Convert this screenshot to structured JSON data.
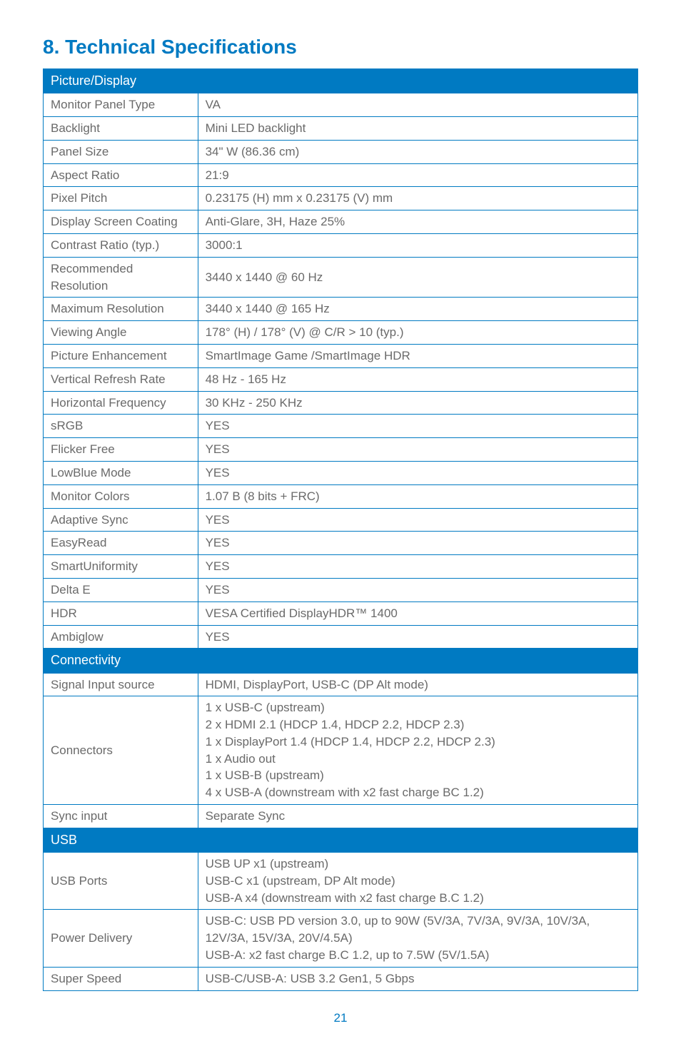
{
  "title": "8.  Technical Specifications",
  "page_number": "21",
  "colors": {
    "title_text": "#007ac2",
    "header_bg": "#007ac2",
    "header_text": "#ffffff",
    "border": "#007ac2",
    "cell_text": "#6a6a6a",
    "page_num_text": "#007ac2"
  },
  "sections": [
    {
      "header": "Picture/Display",
      "rows": [
        {
          "label": "Monitor Panel Type",
          "value": "VA"
        },
        {
          "label": "Backlight",
          "value": "Mini LED backlight"
        },
        {
          "label": "Panel Size",
          "value": "34\" W (86.36 cm)"
        },
        {
          "label": "Aspect Ratio",
          "value": "21:9"
        },
        {
          "label": "Pixel Pitch",
          "value": "0.23175 (H) mm x 0.23175 (V) mm"
        },
        {
          "label": "Display Screen Coating",
          "value": "Anti-Glare, 3H, Haze 25%"
        },
        {
          "label": "Contrast Ratio (typ.)",
          "value": "3000:1"
        },
        {
          "label": "Recommended Resolution",
          "value": "3440 x 1440 @ 60 Hz"
        },
        {
          "label": "Maximum Resolution",
          "value": "3440 x 1440 @ 165 Hz"
        },
        {
          "label": "Viewing Angle",
          "value": "178° (H) / 178° (V) @ C/R > 10 (typ.)"
        },
        {
          "label": "Picture Enhancement",
          "value": "SmartImage Game /SmartImage HDR"
        },
        {
          "label": "Vertical Refresh Rate",
          "value": "48 Hz - 165 Hz"
        },
        {
          "label": "Horizontal Frequency",
          "value": "30 KHz - 250 KHz"
        },
        {
          "label": "sRGB",
          "value": "YES"
        },
        {
          "label": "Flicker Free",
          "value": "YES"
        },
        {
          "label": "LowBlue Mode",
          "value": "YES"
        },
        {
          "label": "Monitor Colors",
          "value": "1.07 B (8 bits + FRC)"
        },
        {
          "label": "Adaptive Sync",
          "value": "YES"
        },
        {
          "label": "EasyRead",
          "value": "YES"
        },
        {
          "label": "SmartUniformity",
          "value": "YES"
        },
        {
          "label": "Delta E",
          "value": "YES"
        },
        {
          "label": "HDR",
          "value": "VESA Certified DisplayHDR™ 1400"
        },
        {
          "label": "Ambiglow",
          "value": "YES"
        }
      ]
    },
    {
      "header": "Connectivity",
      "rows": [
        {
          "label": "Signal Input source",
          "value": "HDMI, DisplayPort, USB-C (DP Alt mode)"
        },
        {
          "label": "Connectors",
          "value": "1 x USB-C (upstream)\n2 x HDMI 2.1 (HDCP 1.4, HDCP 2.2, HDCP 2.3)\n1 x DisplayPort 1.4 (HDCP 1.4, HDCP 2.2, HDCP 2.3)\n1 x Audio out\n1 x USB-B (upstream)\n4 x USB-A (downstream with x2 fast charge BC 1.2)"
        },
        {
          "label": "Sync input",
          "value": "Separate Sync"
        }
      ]
    },
    {
      "header": "USB",
      "rows": [
        {
          "label": "USB Ports",
          "value": "USB UP x1 (upstream)\nUSB-C x1 (upstream, DP Alt mode)\nUSB-A x4 (downstream with x2 fast charge B.C 1.2)"
        },
        {
          "label": "Power Delivery",
          "value": "USB-C: USB PD version 3.0, up to 90W (5V/3A, 7V/3A, 9V/3A, 10V/3A, 12V/3A, 15V/3A, 20V/4.5A)\nUSB-A: x2 fast charge B.C 1.2, up to 7.5W (5V/1.5A)"
        },
        {
          "label": "Super Speed",
          "value": "USB-C/USB-A: USB 3.2 Gen1, 5 Gbps"
        }
      ]
    }
  ]
}
